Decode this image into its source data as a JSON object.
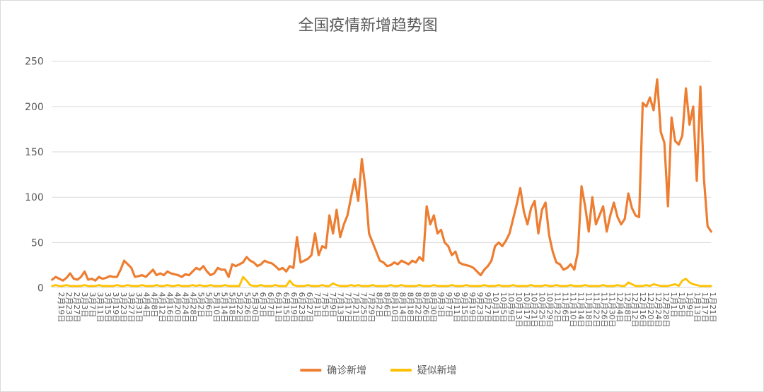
{
  "chart_data": {
    "type": "line",
    "title": "全国疫情新增趋势图",
    "xlabel": "",
    "ylabel": "",
    "ylim": [
      0,
      250
    ],
    "yticks": [
      0,
      50,
      100,
      150,
      200,
      250
    ],
    "grid": "horizontal",
    "legend_position": "bottom",
    "x_tick_labels": [
      "2月19日",
      "2月23日",
      "2月27日",
      "3月3日",
      "3月7日",
      "3月11日",
      "3月15日",
      "3月19日",
      "3月23日",
      "3月27日",
      "3月31日",
      "4月4日",
      "4月8日",
      "4月12日",
      "4月16日",
      "4月20日",
      "4月24日",
      "4月28日",
      "5月2日",
      "5月6日",
      "5月10日",
      "5月14日",
      "5月18日",
      "5月22日",
      "5月26日",
      "5月30日",
      "6月3日",
      "6月7日",
      "6月11日",
      "6月15日",
      "6月19日",
      "6月23日",
      "6月27日",
      "7月1日",
      "7月5日",
      "7月9日",
      "7月13日",
      "7月17日",
      "7月21日",
      "7月25日",
      "7月29日",
      "8月2日",
      "8月6日",
      "8月10日",
      "8月14日",
      "8月18日",
      "8月22日",
      "8月26日",
      "8月30日",
      "9月3日",
      "9月7日",
      "9月11日",
      "9月15日",
      "9月19日",
      "9月23日",
      "9月27日",
      "10月1日",
      "10月5日",
      "10月9日",
      "10月13日",
      "10月17日",
      "10月21日",
      "10月25日",
      "10月29日",
      "11月2日",
      "11月6日",
      "11月10日",
      "11月14日",
      "11月18日",
      "11月22日",
      "11月26日",
      "11月30日",
      "12月4日",
      "12月8日",
      "12月12日",
      "12月16日",
      "12月20日",
      "12月24日",
      "12月28日",
      "1月1日",
      "1月5日",
      "1月9日",
      "1月13日",
      "1月17日",
      "1月21日"
    ],
    "series": [
      {
        "name": "确诊新增",
        "color": "#ED7D31",
        "values": [
          9,
          12,
          10,
          8,
          11,
          16,
          10,
          9,
          12,
          18,
          9,
          10,
          8,
          12,
          10,
          11,
          13,
          12,
          12,
          20,
          30,
          26,
          22,
          12,
          13,
          14,
          12,
          16,
          20,
          14,
          16,
          14,
          18,
          16,
          15,
          14,
          12,
          15,
          14,
          18,
          22,
          20,
          24,
          18,
          14,
          16,
          22,
          20,
          20,
          12,
          26,
          24,
          26,
          28,
          34,
          30,
          28,
          24,
          26,
          30,
          28,
          27,
          24,
          20,
          22,
          18,
          24,
          22,
          56,
          28,
          30,
          32,
          36,
          60,
          36,
          46,
          44,
          80,
          60,
          86,
          56,
          70,
          80,
          100,
          120,
          96,
          142,
          110,
          60,
          50,
          40,
          30,
          28,
          24,
          25,
          28,
          26,
          30,
          28,
          26,
          30,
          28,
          34,
          30,
          90,
          70,
          80,
          60,
          64,
          50,
          46,
          36,
          40,
          28,
          26,
          25,
          24,
          22,
          18,
          14,
          20,
          24,
          30,
          46,
          50,
          46,
          52,
          60,
          76,
          92,
          110,
          84,
          70,
          88,
          96,
          60,
          86,
          94,
          58,
          40,
          28,
          26,
          20,
          22,
          26,
          20,
          40,
          112,
          90,
          62,
          100,
          70,
          80,
          90,
          62,
          80,
          94,
          78,
          70,
          76,
          104,
          88,
          80,
          78,
          204,
          200,
          210,
          196,
          230,
          172,
          160,
          90,
          188,
          162,
          158,
          168,
          220,
          180,
          200,
          118,
          222,
          120,
          68,
          62
        ]
      },
      {
        "name": "疑似新增",
        "color": "#FFC000",
        "values": [
          2,
          3,
          2,
          2,
          3,
          2,
          2,
          2,
          2,
          3,
          2,
          2,
          2,
          3,
          2,
          2,
          2,
          2,
          3,
          2,
          2,
          3,
          2,
          2,
          2,
          3,
          2,
          2,
          2,
          3,
          2,
          2,
          3,
          2,
          2,
          3,
          2,
          2,
          2,
          3,
          2,
          3,
          2,
          2,
          3,
          2,
          2,
          2,
          3,
          2,
          2,
          2,
          2,
          12,
          8,
          3,
          2,
          2,
          3,
          2,
          2,
          2,
          3,
          2,
          2,
          2,
          8,
          3,
          2,
          2,
          2,
          3,
          2,
          2,
          2,
          3,
          2,
          2,
          5,
          3,
          2,
          2,
          2,
          3,
          2,
          3,
          2,
          2,
          2,
          3,
          2,
          2,
          2,
          2,
          3,
          2,
          2,
          3,
          2,
          2,
          2,
          2,
          3,
          2,
          2,
          2,
          3,
          2,
          2,
          2,
          2,
          3,
          2,
          2,
          2,
          3,
          2,
          2,
          2,
          2,
          3,
          2,
          2,
          2,
          3,
          2,
          2,
          2,
          3,
          2,
          2,
          2,
          2,
          3,
          2,
          2,
          2,
          3,
          2,
          2,
          3,
          2,
          2,
          2,
          3,
          2,
          2,
          2,
          3,
          2,
          2,
          2,
          2,
          3,
          2,
          2,
          2,
          3,
          2,
          2,
          6,
          4,
          2,
          2,
          2,
          3,
          2,
          4,
          3,
          2,
          2,
          2,
          3,
          4,
          2,
          8,
          10,
          6,
          4,
          3,
          2,
          2,
          2,
          2
        ]
      }
    ]
  }
}
